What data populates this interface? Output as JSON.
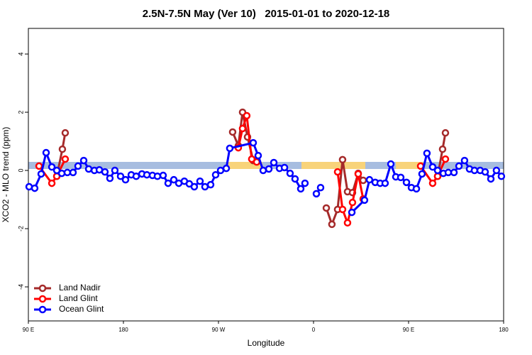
{
  "chart_data": {
    "type": "line",
    "title": "2.5N-7.5N May (Ver 10)   2015-01-01 to 2020-12-18",
    "x_label": "Longitude",
    "y_label": "XCO2 - MLO trend (ppm)",
    "xlim": [
      90,
      540
    ],
    "xticks": [
      {
        "value": 90,
        "label": "90 E"
      },
      {
        "value": 180,
        "label": "180"
      },
      {
        "value": 270,
        "label": "90 W"
      },
      {
        "value": 360,
        "label": "0"
      },
      {
        "value": 450,
        "label": "90 E"
      },
      {
        "value": 540,
        "label": "180"
      }
    ],
    "ylim": [
      -5.17,
      4.88
    ],
    "yticks": [
      -4,
      -2,
      0,
      2,
      4
    ],
    "legend": "bottom-left",
    "series": [
      {
        "name": "Land Nadir",
        "color": "#a52a2a",
        "x": [
          116.9,
          122.2,
          124.9,
          null,
          283.4,
          288.8,
          292.8,
          297.5,
          302.9,
          null,
          372.1,
          377.4,
          382.8,
          387.5,
          392.2,
          396.9,
          402.3,
          407.0,
          null,
          477.5,
          482.2,
          484.9
        ],
        "values": [
          -0.2,
          0.73,
          1.29,
          null,
          1.32,
          0.85,
          2.0,
          1.15,
          0.34,
          null,
          -1.29,
          -1.85,
          -1.34,
          0.37,
          -0.73,
          -0.76,
          -0.1,
          -0.34,
          null,
          -0.2,
          0.73,
          1.29
        ]
      },
      {
        "name": "Land Glint",
        "color": "#ff0000",
        "x": [
          100.1,
          112.2,
          116.9,
          124.9,
          null,
          288.8,
          292.8,
          296.8,
          301.5,
          306.2,
          null,
          382.8,
          387.5,
          392.2,
          396.9,
          402.3,
          407.0,
          null,
          461.4,
          472.8,
          477.5,
          484.9
        ],
        "values": [
          0.15,
          -0.44,
          -0.2,
          0.39,
          null,
          0.78,
          1.44,
          1.88,
          0.39,
          0.29,
          null,
          -0.05,
          -1.34,
          -1.8,
          -1.1,
          -0.12,
          -0.98,
          null,
          0.15,
          -0.44,
          -0.2,
          0.39
        ]
      },
      {
        "name": "Ocean Glint",
        "color": "#0000ff",
        "x": [
          90.7,
          96.0,
          102.1,
          106.8,
          112.2,
          116.9,
          121.6,
          126.9,
          132.3,
          137.0,
          142.4,
          147.1,
          152.5,
          157.2,
          162.5,
          167.2,
          171.9,
          177.3,
          182.0,
          187.4,
          192.1,
          197.5,
          202.2,
          207.5,
          212.2,
          217.6,
          222.3,
          227.7,
          232.4,
          237.7,
          242.4,
          247.1,
          252.5,
          257.2,
          262.6,
          267.3,
          272.0,
          277.4,
          280.7,
          302.9,
          307.6,
          312.3,
          317.7,
          322.4,
          327.8,
          332.5,
          337.8,
          342.5,
          347.9,
          351.9,
          null,
          362.7,
          366.7,
          null,
          396.3,
          408.3,
          413.0,
          418.4,
          423.1,
          427.8,
          433.2,
          437.9,
          442.6,
          448.0,
          452.7,
          457.4,
          462.7,
          467.4,
          472.8,
          477.5,
          482.9,
          487.6,
          493.0,
          497.7,
          503.0,
          507.7,
          512.4,
          517.8,
          522.5,
          527.9,
          533.2,
          537.9
        ],
        "values": [
          -0.56,
          -0.61,
          -0.12,
          0.61,
          0.12,
          0,
          -0.1,
          -0.07,
          -0.07,
          0.15,
          0.34,
          0.05,
          0,
          0.02,
          -0.05,
          -0.27,
          0,
          -0.2,
          -0.32,
          -0.15,
          -0.2,
          -0.12,
          -0.15,
          -0.17,
          -0.2,
          -0.17,
          -0.44,
          -0.32,
          -0.44,
          -0.37,
          -0.46,
          -0.56,
          -0.37,
          -0.56,
          -0.49,
          -0.15,
          0,
          0.07,
          0.76,
          0.95,
          0.51,
          0,
          0.05,
          0.27,
          0.07,
          0.1,
          -0.1,
          -0.29,
          -0.63,
          -0.44,
          null,
          -0.8,
          -0.59,
          null,
          -1.44,
          -1.02,
          -0.32,
          -0.41,
          -0.44,
          -0.44,
          0.22,
          -0.22,
          -0.24,
          -0.41,
          -0.59,
          -0.63,
          -0.12,
          0.59,
          0.12,
          0,
          -0.1,
          -0.07,
          -0.07,
          0.15,
          0.34,
          0.05,
          0,
          0,
          -0.05,
          -0.29,
          0,
          -0.2
        ]
      }
    ]
  }
}
